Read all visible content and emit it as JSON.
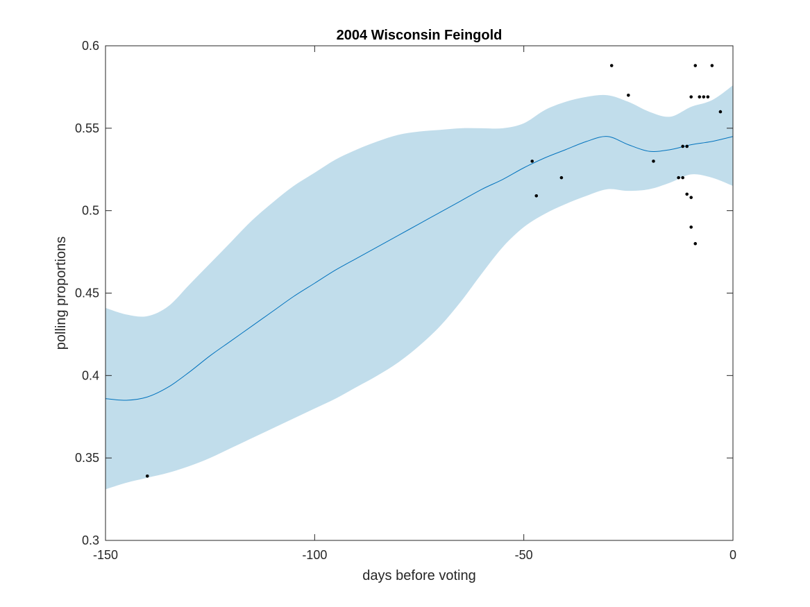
{
  "chart_data": {
    "type": "line",
    "title": "2004 Wisconsin Feingold",
    "xlabel": "days before voting",
    "ylabel": "polling proportions",
    "xlim": [
      -150,
      0
    ],
    "ylim": [
      0.3,
      0.6
    ],
    "xticks": [
      -150,
      -100,
      -50,
      0
    ],
    "xtick_labels": [
      "-150",
      "-100",
      "-50",
      "0"
    ],
    "yticks": [
      0.3,
      0.35,
      0.4,
      0.45,
      0.5,
      0.55,
      0.6
    ],
    "ytick_labels": [
      "0.3",
      "0.35",
      "0.4",
      "0.45",
      "0.5",
      "0.55",
      "0.6"
    ],
    "grid": false,
    "colors": {
      "mean": "#0072BD",
      "band": "#C1DDEB",
      "points": "#000000",
      "axes": "#262626"
    },
    "series": [
      {
        "type": "line",
        "x": [
          -150,
          -145,
          -140,
          -135,
          -130,
          -125,
          -120,
          -115,
          -110,
          -105,
          -100,
          -95,
          -90,
          -85,
          -80,
          -75,
          -70,
          -65,
          -60,
          -55,
          -50,
          -45,
          -40,
          -35,
          -30,
          -25,
          -20,
          -15,
          -10,
          -5,
          0
        ],
        "y": [
          0.386,
          0.385,
          0.387,
          0.393,
          0.402,
          0.412,
          0.421,
          0.43,
          0.439,
          0.448,
          0.456,
          0.464,
          0.471,
          0.478,
          0.485,
          0.492,
          0.499,
          0.506,
          0.513,
          0.519,
          0.526,
          0.532,
          0.537,
          0.542,
          0.545,
          0.54,
          0.536,
          0.537,
          0.54,
          0.542,
          0.545
        ]
      },
      {
        "type": "area",
        "x": [
          -150,
          -145,
          -140,
          -135,
          -130,
          -125,
          -120,
          -115,
          -110,
          -105,
          -100,
          -95,
          -90,
          -85,
          -80,
          -75,
          -70,
          -65,
          -60,
          -55,
          -50,
          -45,
          -40,
          -35,
          -30,
          -25,
          -20,
          -15,
          -10,
          -5,
          0
        ],
        "lower": [
          0.331,
          0.335,
          0.338,
          0.341,
          0.345,
          0.35,
          0.356,
          0.362,
          0.368,
          0.374,
          0.38,
          0.386,
          0.393,
          0.4,
          0.408,
          0.418,
          0.43,
          0.445,
          0.462,
          0.478,
          0.49,
          0.498,
          0.504,
          0.509,
          0.513,
          0.512,
          0.513,
          0.517,
          0.522,
          0.52,
          0.515
        ],
        "upper": [
          0.441,
          0.437,
          0.436,
          0.442,
          0.455,
          0.468,
          0.481,
          0.494,
          0.505,
          0.515,
          0.523,
          0.531,
          0.537,
          0.542,
          0.546,
          0.548,
          0.549,
          0.55,
          0.55,
          0.55,
          0.553,
          0.561,
          0.566,
          0.569,
          0.57,
          0.566,
          0.56,
          0.557,
          0.563,
          0.567,
          0.576
        ]
      },
      {
        "type": "scatter",
        "points": [
          {
            "x": -140,
            "y": 0.339
          },
          {
            "x": -48,
            "y": 0.53
          },
          {
            "x": -47,
            "y": 0.509
          },
          {
            "x": -41,
            "y": 0.52
          },
          {
            "x": -29,
            "y": 0.588
          },
          {
            "x": -25,
            "y": 0.57
          },
          {
            "x": -19,
            "y": 0.53
          },
          {
            "x": -13,
            "y": 0.52
          },
          {
            "x": -12,
            "y": 0.52
          },
          {
            "x": -12,
            "y": 0.539
          },
          {
            "x": -11,
            "y": 0.539
          },
          {
            "x": -11,
            "y": 0.51
          },
          {
            "x": -10,
            "y": 0.508
          },
          {
            "x": -10,
            "y": 0.569
          },
          {
            "x": -10,
            "y": 0.49
          },
          {
            "x": -9,
            "y": 0.48
          },
          {
            "x": -9,
            "y": 0.588
          },
          {
            "x": -8,
            "y": 0.569
          },
          {
            "x": -7,
            "y": 0.569
          },
          {
            "x": -6,
            "y": 0.569
          },
          {
            "x": -5,
            "y": 0.588
          },
          {
            "x": -3,
            "y": 0.56
          }
        ]
      }
    ]
  }
}
